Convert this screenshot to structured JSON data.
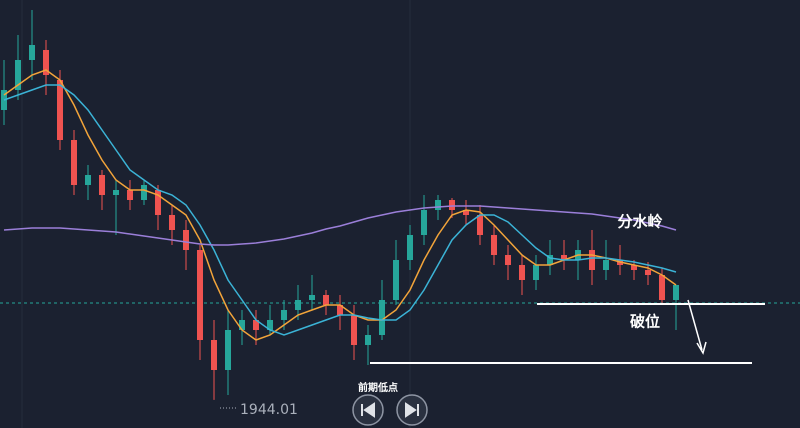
{
  "chart_data": {
    "type": "candlestick",
    "categories": [
      null,
      null,
      null,
      null,
      null,
      null,
      null,
      null,
      null,
      null,
      null,
      null,
      null,
      null,
      null,
      null,
      null,
      null,
      null,
      null,
      null,
      null,
      null,
      null,
      null,
      null,
      null,
      null,
      null,
      null,
      null,
      null,
      null,
      null,
      null,
      null,
      null,
      null,
      null,
      null,
      null,
      null,
      null,
      null,
      null,
      null,
      null,
      null,
      null
    ],
    "open": [
      1973,
      1975,
      1978,
      1979,
      1976,
      1970,
      1965.5,
      1966.5,
      1964.5,
      1965,
      1964,
      1965,
      1962.5,
      1961,
      1959,
      1950,
      1947,
      1951,
      1952,
      1951,
      1952,
      1953,
      1954,
      1954.5,
      1953.5,
      1952.5,
      1949.5,
      1950.5,
      1954,
      1958,
      1960.5,
      1963,
      1964,
      1963,
      1962.5,
      1960.5,
      1958.5,
      1957.5,
      1956,
      1957.5,
      1958.5,
      1958,
      1959,
      1957,
      1958,
      1957.5,
      1957,
      1956.5,
      1954
    ],
    "high": [
      1978,
      1980.5,
      1983,
      1980,
      1977,
      1971,
      1967.5,
      1967,
      1966,
      1966,
      1966,
      1965.5,
      1963.5,
      1962,
      1959.5,
      1952,
      1953,
      1953,
      1953,
      1953.5,
      1954,
      1955.5,
      1956.5,
      1955,
      1954.5,
      1953.5,
      1951.5,
      1956,
      1960,
      1961.5,
      1964.5,
      1964.5,
      1964.2,
      1964,
      1963.5,
      1961.5,
      1959.5,
      1958.5,
      1958.5,
      1960,
      1960,
      1960,
      1961,
      1960,
      1959.5,
      1958,
      1957.8,
      1957.2,
      1955.5
    ],
    "low": [
      1971.5,
      1974,
      1976,
      1974.5,
      1969,
      1964.5,
      1964,
      1963,
      1960.5,
      1963,
      1963.5,
      1961,
      1959.5,
      1957,
      1948,
      1944.01,
      1944.5,
      1949.5,
      1949.5,
      1950.5,
      1951,
      1952,
      1953,
      1952.5,
      1951,
      1948,
      1947.5,
      1950,
      1953.5,
      1957,
      1959.5,
      1962,
      1962.2,
      1961.5,
      1959.5,
      1957.5,
      1956,
      1954.5,
      1955,
      1956.5,
      1957,
      1956,
      1955.5,
      1956,
      1956.5,
      1956,
      1955.5,
      1953.5,
      1951
    ],
    "close": [
      1975,
      1978,
      1979.5,
      1976.5,
      1970,
      1965.5,
      1966.5,
      1964.5,
      1965,
      1964,
      1965.5,
      1962.5,
      1961,
      1959,
      1950,
      1947,
      1951,
      1952,
      1951,
      1952,
      1953,
      1954,
      1954.5,
      1953.5,
      1952.5,
      1949.5,
      1950.5,
      1954,
      1958,
      1960.5,
      1963,
      1964,
      1963,
      1962.5,
      1960.5,
      1958.5,
      1957.5,
      1956,
      1957.5,
      1958.5,
      1958,
      1959,
      1957,
      1958,
      1957.5,
      1957,
      1956.5,
      1954,
      1955.5
    ],
    "up_color": "#26a69a",
    "down_color": "#ef5350",
    "ylim": [
      1941.2,
      1984
    ],
    "lines": [
      {
        "color": "#f2a43a",
        "values": [
          1974.5,
          1975.5,
          1976.5,
          1977,
          1976,
          1973.5,
          1970.5,
          1968,
          1966,
          1965,
          1965,
          1964.5,
          1963.5,
          1962.5,
          1960,
          1956,
          1953,
          1951,
          1950,
          1950.5,
          1951.5,
          1952.5,
          1953,
          1953.5,
          1953.5,
          1952.5,
          1952,
          1952,
          1953,
          1955,
          1958,
          1960.5,
          1962.5,
          1963,
          1962.8,
          1961.5,
          1960,
          1958.5,
          1957.5,
          1957.5,
          1958,
          1958.5,
          1958.5,
          1958.2,
          1957.8,
          1957.5,
          1957.2,
          1956.5,
          1955.5
        ]
      },
      {
        "color": "#3bb3d6",
        "values": [
          1974,
          1974.5,
          1975,
          1975.5,
          1975.5,
          1974.5,
          1973,
          1971,
          1969,
          1967,
          1966,
          1965,
          1964.5,
          1963.5,
          1961.5,
          1959,
          1956,
          1954,
          1952,
          1951,
          1950.5,
          1951,
          1951.5,
          1952,
          1952.5,
          1952.5,
          1952.2,
          1952,
          1952,
          1953,
          1955,
          1957.5,
          1960,
          1961.5,
          1962.5,
          1962.5,
          1961.8,
          1960.5,
          1959.2,
          1958.2,
          1958,
          1958,
          1958.2,
          1958.2,
          1958,
          1957.8,
          1957.5,
          1957.2,
          1956.8
        ]
      },
      {
        "color": "#9b7fd9",
        "values": [
          1961,
          1961.1,
          1961.2,
          1961.2,
          1961.2,
          1961.1,
          1961,
          1960.9,
          1960.8,
          1960.6,
          1960.4,
          1960.2,
          1960,
          1959.8,
          1959.6,
          1959.5,
          1959.5,
          1959.6,
          1959.7,
          1959.9,
          1960.1,
          1960.4,
          1960.7,
          1961.1,
          1961.4,
          1961.8,
          1962.2,
          1962.5,
          1962.8,
          1963,
          1963.2,
          1963.3,
          1963.4,
          1963.4,
          1963.4,
          1963.3,
          1963.2,
          1963.1,
          1963,
          1962.9,
          1962.8,
          1962.7,
          1962.6,
          1962.4,
          1962.2,
          1962,
          1961.7,
          1961.4,
          1961
        ]
      }
    ],
    "price_line": {
      "value": 1953.7,
      "color": "#26a69a"
    },
    "levels": [
      1953.6,
      1947.7
    ],
    "annotations": [
      "分水岭",
      "破位",
      "前期低点"
    ]
  }
}
